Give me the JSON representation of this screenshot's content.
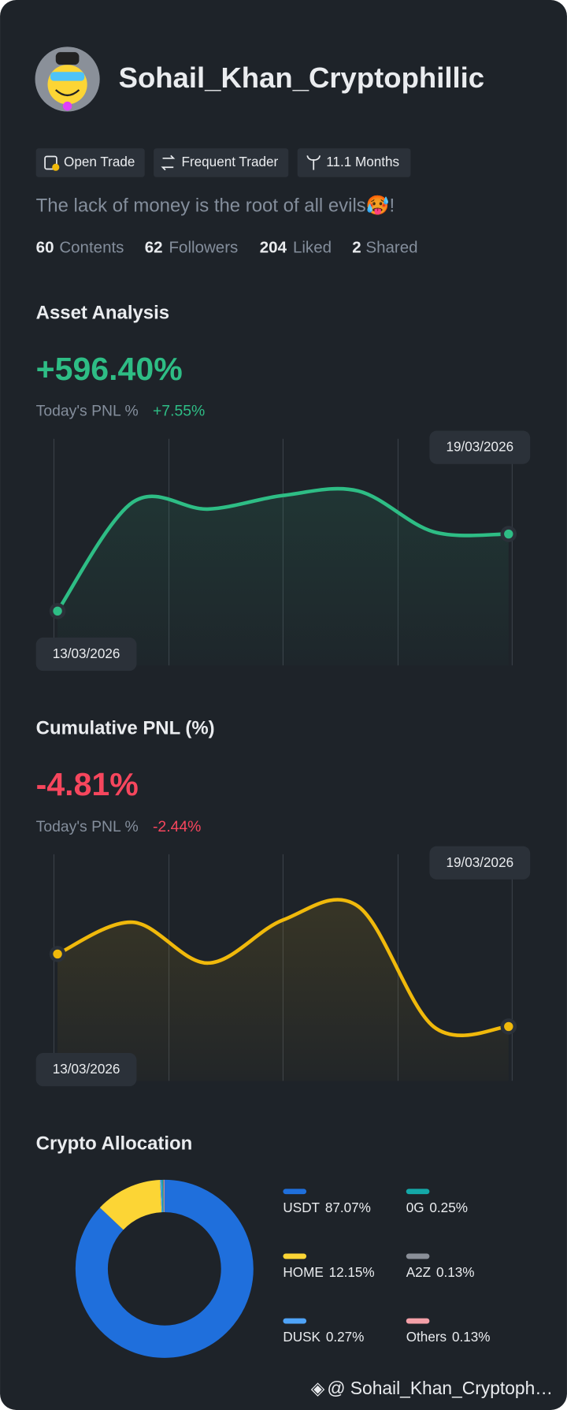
{
  "profile": {
    "name": "Sohail_Khan_Cryptophillic",
    "badges": [
      "Open Trade",
      "Frequent Trader",
      "11.1 Months"
    ],
    "bio": "The lack of money is the root of all evils🥵!",
    "stats": [
      {
        "count": 60,
        "label": "Contents"
      },
      {
        "count": 62,
        "label": "Followers"
      },
      {
        "count": 204,
        "label": "Liked"
      },
      {
        "count": 2,
        "label": "Shared"
      }
    ]
  },
  "chart_data": [
    {
      "type": "line",
      "title": "Asset Analysis",
      "headline": "+596.40%",
      "headline_color": "#2ebd85",
      "pnl_label": "Today's PNL %",
      "pnl_value": "+7.55%",
      "categories": [
        "13/03/2026",
        null,
        null,
        null,
        null,
        null,
        "19/03/2026"
      ],
      "values": [
        24,
        72,
        69,
        75,
        77,
        59,
        58
      ],
      "ylim": [
        0,
        100
      ],
      "color": "#2ebd85"
    },
    {
      "type": "line",
      "title": "Cumulative PNL (%)",
      "headline": "-4.81%",
      "headline_color": "#f6465d",
      "pnl_label": "Today's PNL %",
      "pnl_value": "-2.44%",
      "categories": [
        "13/03/2026",
        null,
        null,
        null,
        null,
        null,
        "19/03/2026"
      ],
      "values": [
        56,
        70,
        52,
        71,
        77,
        24,
        24
      ],
      "ylim": [
        0,
        100
      ],
      "color": "#f0b90b"
    },
    {
      "type": "pie",
      "title": "Crypto Allocation",
      "categories": [
        "USDT",
        "HOME",
        "DUSK",
        "0G",
        "A2Z",
        "Others"
      ],
      "values": [
        87.07,
        12.15,
        0.27,
        0.25,
        0.13,
        0.13
      ],
      "value_labels": [
        "87.07%",
        "12.15%",
        "0.27%",
        "0.25%",
        "0.13%",
        "0.13%"
      ],
      "colors": [
        "#1f6fdc",
        "#fcd535",
        "#4fa3f7",
        "#14a8a8",
        "#8a8f98",
        "#f4a0a8"
      ]
    }
  ],
  "footer": "@ Sohail_Khan_Cryptoph…"
}
